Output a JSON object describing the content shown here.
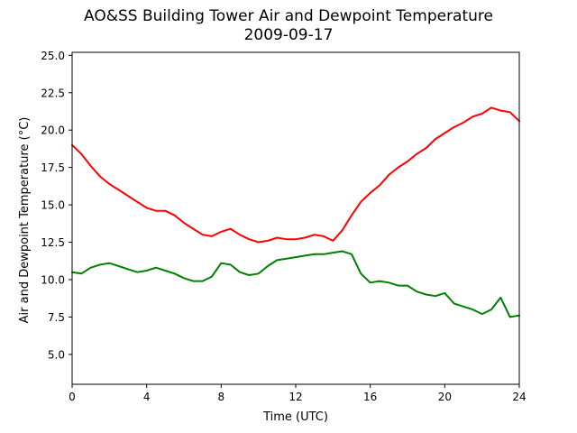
{
  "chart_data": {
    "type": "line",
    "title": "AO&SS Building Tower Air and Dewpoint Temperature",
    "subtitle": "2009-09-17",
    "xlabel": "Time (UTC)",
    "ylabel": "Air and Dewpoint Temperature (°C)",
    "xlim": [
      0,
      24
    ],
    "ylim": [
      3.0,
      25.2
    ],
    "xticks": [
      0,
      4,
      8,
      12,
      16,
      20,
      24
    ],
    "xtick_labels": [
      "0",
      "4",
      "8",
      "12",
      "16",
      "20",
      "24"
    ],
    "yticks": [
      5.0,
      7.5,
      10.0,
      12.5,
      15.0,
      17.5,
      20.0,
      22.5,
      25.0
    ],
    "ytick_labels": [
      "5.0",
      "7.5",
      "10.0",
      "12.5",
      "15.0",
      "17.5",
      "20.0",
      "22.5",
      "25.0"
    ],
    "grid": false,
    "legend": "none",
    "series": [
      {
        "color": "#ff0000",
        "x": [
          0,
          0.5,
          1,
          1.5,
          2,
          2.5,
          3,
          3.5,
          4,
          4.5,
          5,
          5.5,
          6,
          6.5,
          7,
          7.5,
          8,
          8.5,
          9,
          9.5,
          10,
          10.5,
          11,
          11.5,
          12,
          12.5,
          13,
          13.5,
          14,
          14.5,
          15,
          15.5,
          16,
          16.5,
          17,
          17.5,
          18,
          18.5,
          19,
          19.5,
          20,
          20.5,
          21,
          21.5,
          22,
          22.5,
          23,
          23.5,
          24
        ],
        "values": [
          19.0,
          18.4,
          17.6,
          16.9,
          16.4,
          16.0,
          15.6,
          15.2,
          14.8,
          14.6,
          14.6,
          14.3,
          13.8,
          13.4,
          13.0,
          12.9,
          13.2,
          13.4,
          13.0,
          12.7,
          12.5,
          12.6,
          12.8,
          12.7,
          12.7,
          12.8,
          13.0,
          12.9,
          12.6,
          13.3,
          14.3,
          15.2,
          15.8,
          16.3,
          17.0,
          17.5,
          17.9,
          18.4,
          18.8,
          19.4,
          19.8,
          20.2,
          20.5,
          20.9,
          21.1,
          21.5,
          21.3,
          21.2,
          20.6
        ]
      },
      {
        "color": "#008000",
        "x": [
          0,
          0.5,
          1,
          1.5,
          2,
          2.5,
          3,
          3.5,
          4,
          4.5,
          5,
          5.5,
          6,
          6.5,
          7,
          7.5,
          8,
          8.5,
          9,
          9.5,
          10,
          10.5,
          11,
          11.5,
          12,
          12.5,
          13,
          13.5,
          14,
          14.5,
          15,
          15.5,
          16,
          16.5,
          17,
          17.5,
          18,
          18.5,
          19,
          19.5,
          20,
          20.5,
          21,
          21.5,
          22,
          22.5,
          23,
          23.5,
          24
        ],
        "values": [
          10.5,
          10.4,
          10.8,
          11.0,
          11.1,
          10.9,
          10.7,
          10.5,
          10.6,
          10.8,
          10.6,
          10.4,
          10.1,
          9.9,
          9.9,
          10.2,
          11.1,
          11.0,
          10.5,
          10.3,
          10.4,
          10.9,
          11.3,
          11.4,
          11.5,
          11.6,
          11.7,
          11.7,
          11.8,
          11.9,
          11.7,
          10.4,
          9.8,
          9.9,
          9.8,
          9.6,
          9.6,
          9.2,
          9.0,
          8.9,
          9.1,
          8.4,
          8.2,
          8.0,
          7.7,
          8.0,
          8.8,
          7.5,
          7.6
        ]
      }
    ]
  }
}
